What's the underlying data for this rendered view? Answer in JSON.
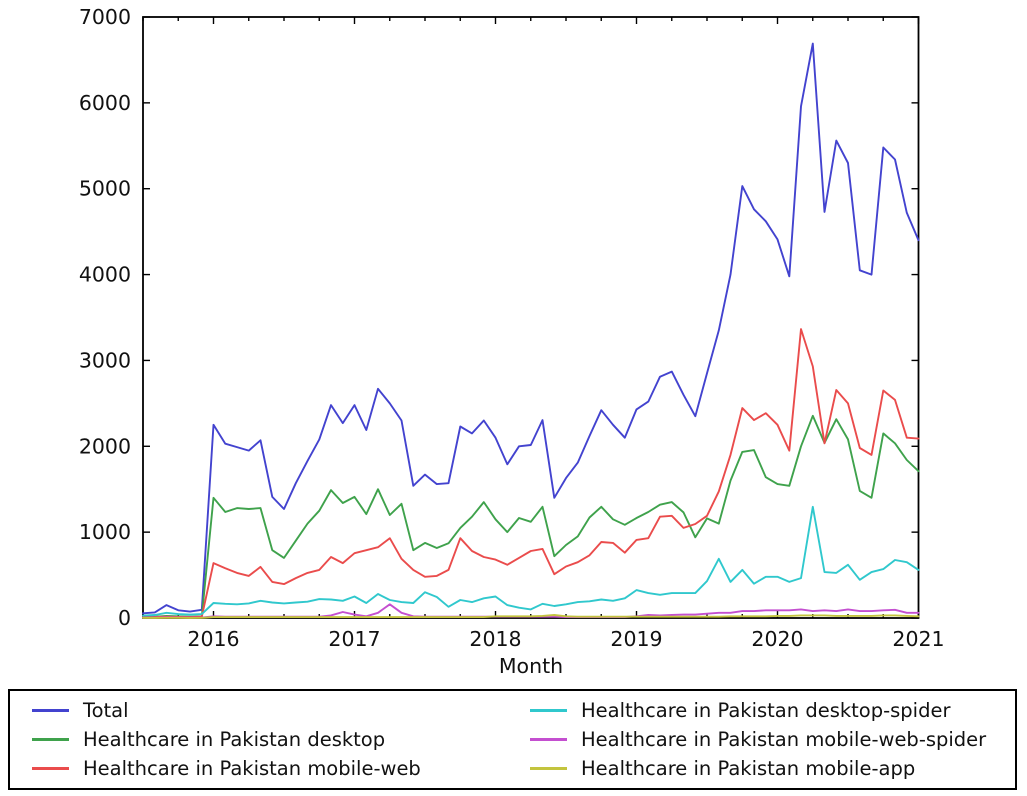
{
  "figure": {
    "background": "#ffffff",
    "axis_color": "#000000",
    "text_color": "#111111"
  },
  "chart_data": {
    "type": "line",
    "title": "",
    "xlabel": "Month",
    "ylabel": "",
    "grid": false,
    "legend_position": "below-two-columns",
    "ylim": [
      0,
      7000
    ],
    "y_ticks": [
      0,
      1000,
      2000,
      3000,
      4000,
      5000,
      6000,
      7000
    ],
    "x_tick_labels": [
      "2016",
      "2017",
      "2018",
      "2019",
      "2020",
      "2021"
    ],
    "x": [
      "2015-07",
      "2015-08",
      "2015-09",
      "2015-10",
      "2015-11",
      "2015-12",
      "2016-01",
      "2016-02",
      "2016-03",
      "2016-04",
      "2016-05",
      "2016-06",
      "2016-07",
      "2016-08",
      "2016-09",
      "2016-10",
      "2016-11",
      "2016-12",
      "2017-01",
      "2017-02",
      "2017-03",
      "2017-04",
      "2017-05",
      "2017-06",
      "2017-07",
      "2017-08",
      "2017-09",
      "2017-10",
      "2017-11",
      "2017-12",
      "2018-01",
      "2018-02",
      "2018-03",
      "2018-04",
      "2018-05",
      "2018-06",
      "2018-07",
      "2018-08",
      "2018-09",
      "2018-10",
      "2018-11",
      "2018-12",
      "2019-01",
      "2019-02",
      "2019-03",
      "2019-04",
      "2019-05",
      "2019-06",
      "2019-07",
      "2019-08",
      "2019-09",
      "2019-10",
      "2019-11",
      "2019-12",
      "2020-01",
      "2020-02",
      "2020-03",
      "2020-04",
      "2020-05",
      "2020-06",
      "2020-07",
      "2020-08",
      "2020-09",
      "2020-10",
      "2020-11",
      "2020-12",
      "2021-01"
    ],
    "series": [
      {
        "id": "total",
        "label": "Total",
        "color": "#4343cf",
        "values": [
          55,
          65,
          150,
          90,
          75,
          95,
          2250,
          2030,
          1990,
          1950,
          2070,
          1410,
          1270,
          1570,
          1830,
          2080,
          2480,
          2270,
          2480,
          2190,
          2670,
          2500,
          2300,
          1540,
          1670,
          1560,
          1570,
          2230,
          2150,
          2300,
          2100,
          1790,
          2000,
          2015,
          2305,
          1400,
          1630,
          1810,
          2120,
          2420,
          2250,
          2100,
          2430,
          2520,
          2810,
          2870,
          2600,
          2350,
          2850,
          3350,
          4000,
          5030,
          4760,
          4620,
          4410,
          3980,
          5960,
          6690,
          4730,
          5560,
          5300,
          4050,
          4000,
          5480,
          5340,
          4720,
          4400
        ]
      },
      {
        "id": "desktop",
        "label": "Healthcare in Pakistan desktop",
        "color": "#3fa24c",
        "values": [
          15,
          15,
          25,
          20,
          15,
          20,
          1400,
          1235,
          1280,
          1270,
          1280,
          790,
          700,
          900,
          1100,
          1250,
          1490,
          1340,
          1410,
          1210,
          1500,
          1200,
          1330,
          790,
          875,
          815,
          870,
          1050,
          1180,
          1350,
          1150,
          1000,
          1165,
          1120,
          1295,
          720,
          850,
          950,
          1170,
          1295,
          1150,
          1085,
          1165,
          1235,
          1320,
          1350,
          1230,
          940,
          1160,
          1100,
          1600,
          1935,
          1955,
          1640,
          1560,
          1540,
          2000,
          2355,
          2040,
          2315,
          2080,
          1480,
          1400,
          2150,
          2035,
          1840,
          1710
        ]
      },
      {
        "id": "mobile-web",
        "label": "Healthcare in Pakistan mobile-web",
        "color": "#ea4c4c",
        "values": [
          8,
          10,
          15,
          12,
          10,
          15,
          640,
          580,
          525,
          490,
          595,
          420,
          395,
          465,
          525,
          560,
          710,
          640,
          755,
          790,
          825,
          930,
          690,
          560,
          480,
          490,
          560,
          930,
          780,
          710,
          680,
          620,
          700,
          780,
          805,
          510,
          600,
          650,
          730,
          885,
          875,
          760,
          910,
          930,
          1180,
          1190,
          1050,
          1095,
          1190,
          1475,
          1900,
          2445,
          2305,
          2385,
          2250,
          1950,
          3365,
          2930,
          2035,
          2655,
          2500,
          1980,
          1900,
          2650,
          2540,
          2100,
          2090
        ]
      },
      {
        "id": "desktop-spider",
        "label": "Healthcare in Pakistan desktop-spider",
        "color": "#30c8cd",
        "values": [
          28,
          35,
          60,
          45,
          40,
          45,
          175,
          165,
          160,
          170,
          200,
          180,
          170,
          180,
          190,
          220,
          215,
          200,
          250,
          175,
          280,
          210,
          185,
          175,
          300,
          245,
          130,
          210,
          185,
          230,
          250,
          150,
          120,
          100,
          165,
          140,
          160,
          185,
          195,
          215,
          200,
          230,
          325,
          290,
          270,
          290,
          290,
          290,
          430,
          690,
          420,
          560,
          400,
          480,
          480,
          420,
          465,
          1295,
          535,
          525,
          620,
          445,
          535,
          570,
          675,
          650,
          560
        ]
      },
      {
        "id": "mobile-web-spider",
        "label": "Healthcare in Pakistan mobile-web-spider",
        "color": "#c44fd0",
        "values": [
          3,
          4,
          8,
          5,
          4,
          5,
          20,
          15,
          15,
          15,
          15,
          15,
          15,
          15,
          15,
          15,
          30,
          70,
          40,
          20,
          60,
          160,
          60,
          20,
          15,
          15,
          15,
          15,
          15,
          15,
          15,
          15,
          15,
          15,
          15,
          15,
          10,
          10,
          10,
          10,
          10,
          10,
          20,
          35,
          30,
          35,
          40,
          40,
          50,
          60,
          60,
          80,
          80,
          90,
          90,
          90,
          100,
          80,
          90,
          80,
          100,
          80,
          80,
          90,
          95,
          60,
          60
        ]
      },
      {
        "id": "mobile-app",
        "label": "Healthcare in Pakistan mobile-app",
        "color": "#c3c43e",
        "values": [
          1,
          1,
          2,
          2,
          1,
          2,
          10,
          10,
          10,
          10,
          10,
          10,
          10,
          10,
          10,
          10,
          10,
          10,
          10,
          10,
          10,
          10,
          10,
          10,
          10,
          10,
          10,
          10,
          10,
          10,
          20,
          20,
          20,
          20,
          25,
          35,
          20,
          15,
          15,
          15,
          15,
          15,
          15,
          15,
          15,
          15,
          15,
          15,
          15,
          15,
          20,
          20,
          20,
          20,
          25,
          25,
          30,
          30,
          30,
          25,
          25,
          25,
          25,
          30,
          30,
          25,
          20
        ]
      }
    ]
  }
}
